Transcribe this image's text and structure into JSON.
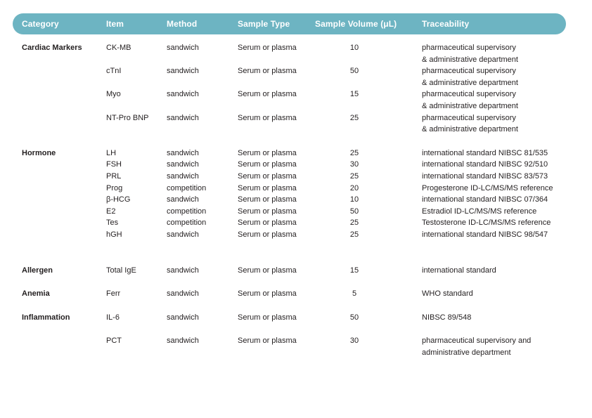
{
  "theme": {
    "header_bg": "#6db4c2",
    "header_text": "#ffffff",
    "body_text": "#231f20"
  },
  "table": {
    "columns": [
      "Category",
      "Item",
      "Method",
      "Sample Type",
      "Sample Volume (μL)",
      "Traceability"
    ],
    "sections": [
      {
        "category": "Cardiac Markers",
        "rows": [
          {
            "item": "CK-MB",
            "method": "sandwich",
            "sample_type": "Serum or plasma",
            "volume": "10",
            "traceability": "pharmaceutical supervisory\n& administrative department"
          },
          {
            "item": "cTnI",
            "method": "sandwich",
            "sample_type": "Serum or plasma",
            "volume": "50",
            "traceability": "pharmaceutical supervisory\n& administrative department"
          },
          {
            "item": "Myo",
            "method": "sandwich",
            "sample_type": "Serum or plasma",
            "volume": "15",
            "traceability": "pharmaceutical supervisory\n& administrative department"
          },
          {
            "item": "NT-Pro BNP",
            "method": "sandwich",
            "sample_type": "Serum or plasma",
            "volume": "25",
            "traceability": "pharmaceutical supervisory\n& administrative department"
          }
        ]
      },
      {
        "category": "Hormone",
        "rows": [
          {
            "item": "LH",
            "method": "sandwich",
            "sample_type": "Serum or plasma",
            "volume": "25",
            "traceability": "international standard NIBSC 81/535"
          },
          {
            "item": "FSH",
            "method": "sandwich",
            "sample_type": "Serum or plasma",
            "volume": "30",
            "traceability": "international standard NIBSC 92/510"
          },
          {
            "item": "PRL",
            "method": "sandwich",
            "sample_type": "Serum or plasma",
            "volume": "25",
            "traceability": "international standard NIBSC 83/573"
          },
          {
            "item": "Prog",
            "method": "competition",
            "sample_type": "Serum or plasma",
            "volume": "20",
            "traceability": "Progesterone ID-LC/MS/MS reference"
          },
          {
            "item": "β-HCG",
            "method": "sandwich",
            "sample_type": "Serum or plasma",
            "volume": "10",
            "traceability": "international standard NIBSC 07/364"
          },
          {
            "item": "E2",
            "method": "competition",
            "sample_type": "Serum or plasma",
            "volume": "50",
            "traceability": "Estradiol ID-LC/MS/MS reference"
          },
          {
            "item": "Tes",
            "method": "competition",
            "sample_type": "Serum or plasma",
            "volume": "25",
            "traceability": "Testosterone ID-LC/MS/MS reference"
          },
          {
            "item": "hGH",
            "method": "sandwich",
            "sample_type": "Serum or plasma",
            "volume": "25",
            "traceability": "international standard NIBSC 98/547"
          }
        ]
      },
      {
        "category": "Allergen",
        "rows": [
          {
            "item": "Total IgE",
            "method": "sandwich",
            "sample_type": "Serum or plasma",
            "volume": "15",
            "traceability": "international standard"
          }
        ]
      },
      {
        "category": "Anemia",
        "rows": [
          {
            "item": "Ferr",
            "method": "sandwich",
            "sample_type": "Serum or plasma",
            "volume": "5",
            "traceability": "WHO standard"
          }
        ]
      },
      {
        "category": "Inflammation",
        "rows": [
          {
            "item": "IL-6",
            "method": "sandwich",
            "sample_type": "Serum or plasma",
            "volume": "50",
            "traceability": "NIBSC 89/548"
          },
          {
            "item": "PCT",
            "method": "sandwich",
            "sample_type": "Serum or plasma",
            "volume": "30",
            "traceability": "pharmaceutical supervisory and\nadministrative department"
          }
        ]
      }
    ]
  }
}
